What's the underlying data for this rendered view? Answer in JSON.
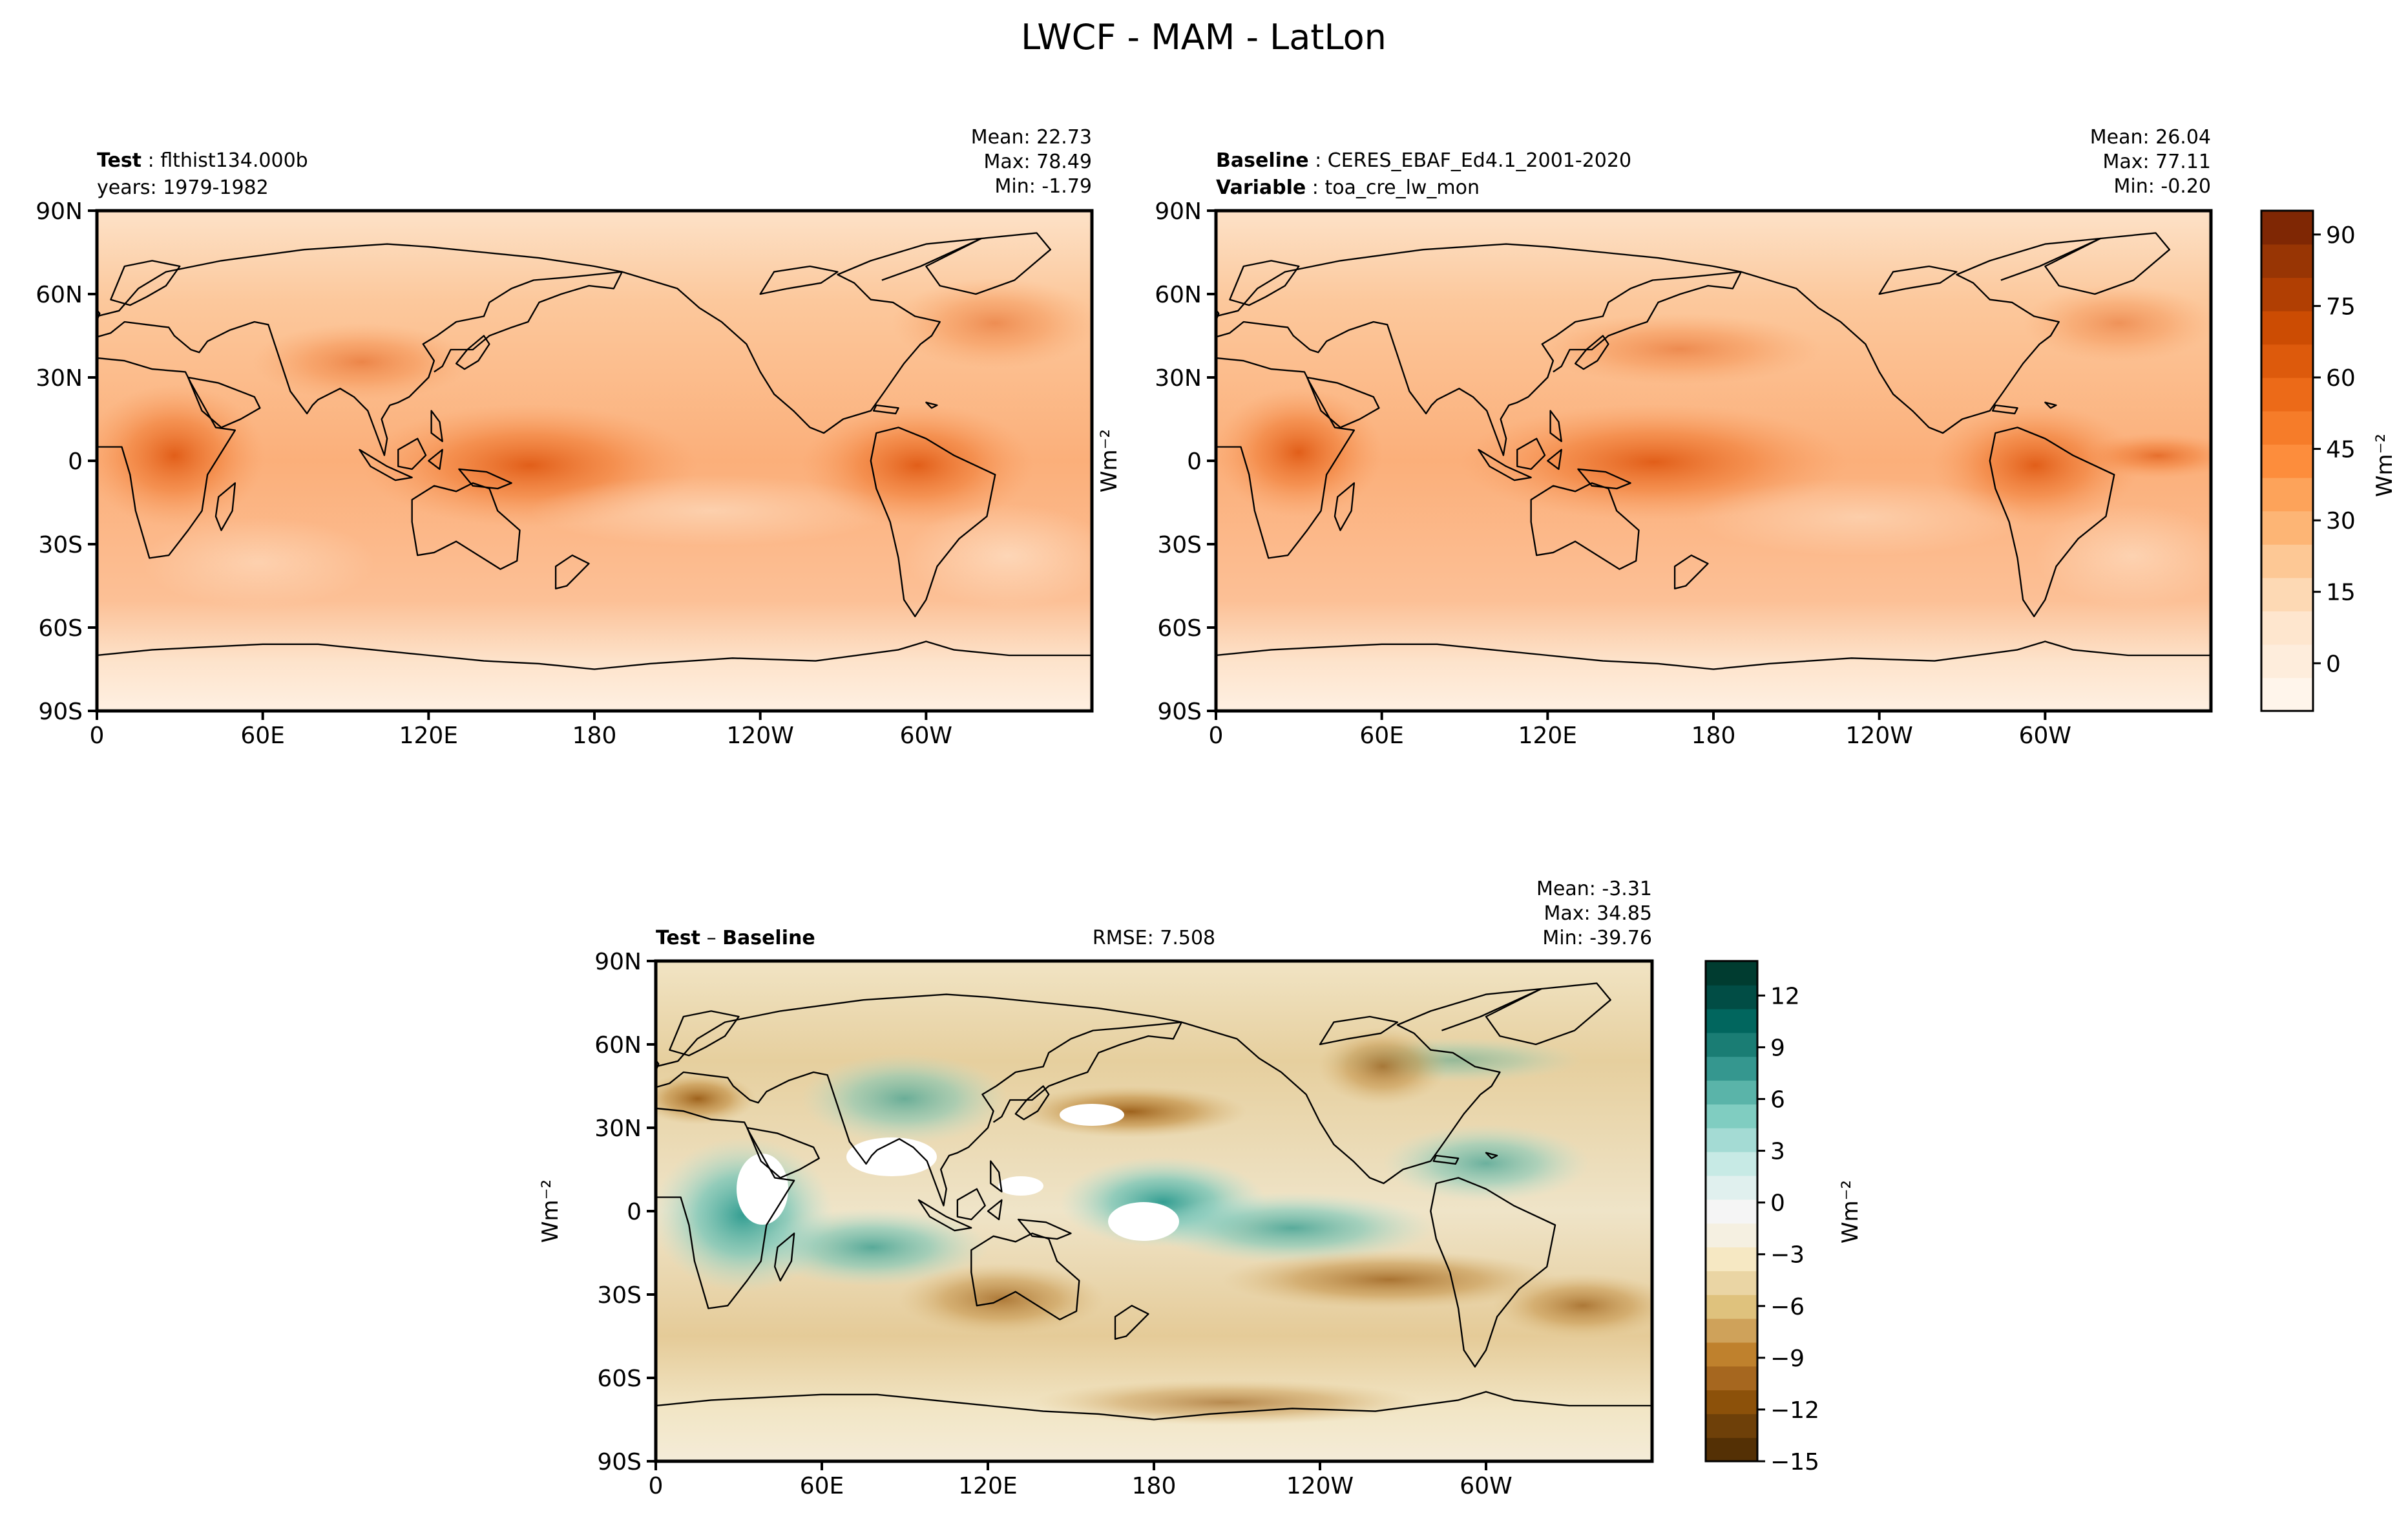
{
  "figure": {
    "title": "LWCF - MAM - LatLon"
  },
  "chart_data": [
    {
      "type": "heatmap",
      "panel": "test",
      "label_bold": "Test",
      "label_value": "flthist134.000b",
      "subtitle": "years: 1979-1982",
      "stats": {
        "mean": "Mean: 22.73",
        "max": "Max: 78.49",
        "min": "Min: -1.79"
      },
      "values_summary": {
        "mean": 22.73,
        "max": 78.49,
        "min": -1.79
      },
      "ylabel": "Wm⁻²",
      "x_ticks": [
        "0",
        "60E",
        "120E",
        "180",
        "120W",
        "60W"
      ],
      "y_ticks": [
        "90N",
        "60N",
        "30N",
        "0",
        "30S",
        "60S",
        "90S"
      ],
      "x_range": [
        0,
        360
      ],
      "y_range": [
        -90,
        90
      ],
      "colormap": "Oranges"
    },
    {
      "type": "heatmap",
      "panel": "baseline",
      "label_bold": "Baseline",
      "label_value": "CERES_EBAF_Ed4.1_2001-2020",
      "label2_bold": "Variable",
      "label2_value": "toa_cre_lw_mon",
      "stats": {
        "mean": "Mean: 26.04",
        "max": "Max: 77.11",
        "min": "Min: -0.20"
      },
      "values_summary": {
        "mean": 26.04,
        "max": 77.11,
        "min": -0.2
      },
      "x_ticks": [
        "0",
        "60E",
        "120E",
        "180",
        "120W",
        "60W"
      ],
      "y_ticks": [
        "90N",
        "60N",
        "30N",
        "0",
        "30S",
        "60S",
        "90S"
      ],
      "x_range": [
        0,
        360
      ],
      "y_range": [
        -90,
        90
      ],
      "colormap": "Oranges",
      "colorbar": {
        "label": "Wm⁻²",
        "ticks": [
          "90",
          "75",
          "60",
          "45",
          "30",
          "15",
          "0"
        ],
        "tick_values": [
          90,
          75,
          60,
          45,
          30,
          15,
          0
        ],
        "range": [
          -10,
          95
        ],
        "colors": [
          "#fff5eb",
          "#feeddc",
          "#fee6ce",
          "#fdd9b4",
          "#fdc895",
          "#fdb575",
          "#fda35a",
          "#fd8d3c",
          "#f67c29",
          "#ec6a18",
          "#dd5a0c",
          "#cc4c03",
          "#b13f03",
          "#983504",
          "#7f2704"
        ]
      }
    },
    {
      "type": "heatmap",
      "panel": "difference",
      "label_bold_a": "Test",
      "label_sep": " – ",
      "label_bold_b": "Baseline",
      "rmse": "RMSE: 7.508",
      "stats": {
        "mean": "Mean: -3.31",
        "max": "Max: 34.85",
        "min": "Min: -39.76"
      },
      "values_summary": {
        "mean": -3.31,
        "max": 34.85,
        "min": -39.76,
        "rmse": 7.508
      },
      "ylabel": "Wm⁻²",
      "x_ticks": [
        "0",
        "60E",
        "120E",
        "180",
        "120W",
        "60W"
      ],
      "y_ticks": [
        "90N",
        "60N",
        "30N",
        "0",
        "30S",
        "60S",
        "90S"
      ],
      "x_range": [
        0,
        360
      ],
      "y_range": [
        -90,
        90
      ],
      "colormap": "BrBG",
      "colorbar": {
        "label": "Wm⁻²",
        "ticks": [
          "12",
          "9",
          "6",
          "3",
          "0",
          "−3",
          "−6",
          "−9",
          "−12",
          "−15"
        ],
        "tick_values": [
          12,
          9,
          6,
          3,
          0,
          -3,
          -6,
          -9,
          -12,
          -15
        ],
        "range": [
          -15,
          14
        ],
        "colors": [
          "#543005",
          "#6e4009",
          "#8c510a",
          "#a6671f",
          "#bf812d",
          "#cfa25a",
          "#dfc27d",
          "#ead5a4",
          "#f6e8c3",
          "#f5f0e1",
          "#f5f5f5",
          "#e0f0ee",
          "#c7eae5",
          "#a4dbd4",
          "#80cdc1",
          "#5ab4a9",
          "#35978f",
          "#1a7d74",
          "#01665e",
          "#014d45",
          "#003c30"
        ]
      }
    }
  ]
}
